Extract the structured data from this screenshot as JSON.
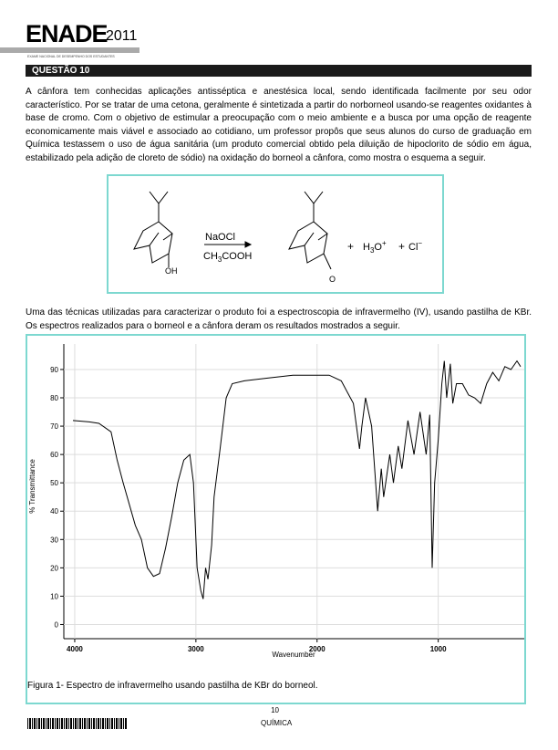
{
  "header": {
    "brand": "ENADE",
    "year": "2011",
    "subtitle": "EXAME NACIONAL DE DESEMPENHO DOS ESTUDANTES"
  },
  "question": {
    "title": "QUESTÃO 10",
    "paragraph_1": "A cânfora tem conhecidas aplicações antisséptica e anestésica local, sendo identificada facilmente por seu odor característico. Por se tratar de uma cetona, geralmente é sintetizada a partir do norborneol usando-se reagentes oxidantes à base de cromo. Com o objetivo de estimular a preocupação com o meio ambiente e a busca por uma opção de reagente economicamente mais viável e associado ao cotidiano, um professor propôs que seus alunos do curso de graduação em Química testassem o uso de água sanitária (um produto comercial obtido pela diluição de hipoclorito de sódio em água, estabilizado pela adição de cloreto de sódio) na oxidação do borneol a cânfora, como mostra o esquema a seguir.",
    "paragraph_2": "Uma das técnicas utilizadas para caracterizar o produto foi a espectroscopia de infravermelho (IV), usando pastilha de KBr. Os espectros realizados para o borneol e a cânfora deram os resultados mostrados a seguir."
  },
  "reaction": {
    "oh": "OH",
    "o": "O",
    "reagent_1": "NaOCl",
    "reagent_2_a": "CH",
    "reagent_2_sub": "3",
    "reagent_2_b": "COOH",
    "plus_1": "+",
    "h3o_a": "H",
    "h3o_sub": "3",
    "h3o_b": "O",
    "h3o_sup": "+",
    "plus_2": "+",
    "cl": "Cl",
    "cl_sup": "−"
  },
  "chart_data": {
    "type": "line",
    "xlabel": "Wavenumber",
    "ylabel": "% Transmittance",
    "color": "#000000",
    "xlim": [
      4090,
      290
    ],
    "ylim": [
      -5,
      99
    ],
    "xticks": [
      4000,
      3000,
      2000,
      1000
    ],
    "yticks": [
      0,
      10,
      20,
      30,
      40,
      50,
      60,
      70,
      80,
      90
    ],
    "x": [
      4015,
      3880,
      3800,
      3700,
      3650,
      3600,
      3500,
      3450,
      3400,
      3350,
      3300,
      3250,
      3200,
      3150,
      3100,
      3050,
      3020,
      2990,
      2960,
      2940,
      2920,
      2900,
      2870,
      2850,
      2800,
      2750,
      2700,
      2600,
      2400,
      2200,
      2000,
      1900,
      1800,
      1700,
      1650,
      1630,
      1600,
      1550,
      1500,
      1470,
      1450,
      1400,
      1370,
      1330,
      1300,
      1250,
      1200,
      1150,
      1100,
      1070,
      1050,
      1030,
      1000,
      970,
      950,
      930,
      900,
      880,
      850,
      800,
      750,
      700,
      650,
      600,
      550,
      500,
      450,
      400,
      350,
      320
    ],
    "values": [
      72,
      71.5,
      71,
      68,
      58,
      50,
      35,
      30,
      20,
      17,
      18,
      27,
      38,
      50,
      58,
      60,
      50,
      20,
      12,
      9,
      20,
      16,
      28,
      45,
      62,
      80,
      85,
      86,
      87,
      88,
      88,
      88,
      86,
      78,
      62,
      70,
      80,
      70,
      40,
      55,
      45,
      60,
      50,
      63,
      55,
      72,
      60,
      75,
      60,
      74,
      20,
      50,
      65,
      85,
      93,
      80,
      92,
      78,
      85,
      85,
      81,
      80,
      78,
      85,
      89,
      86,
      91,
      90,
      93,
      91
    ]
  },
  "caption": "Figura 1- Espectro de infravermelho usando pastilha de KBr do borneol.",
  "footer": {
    "page": "10",
    "subject": "QUÍMICA"
  }
}
